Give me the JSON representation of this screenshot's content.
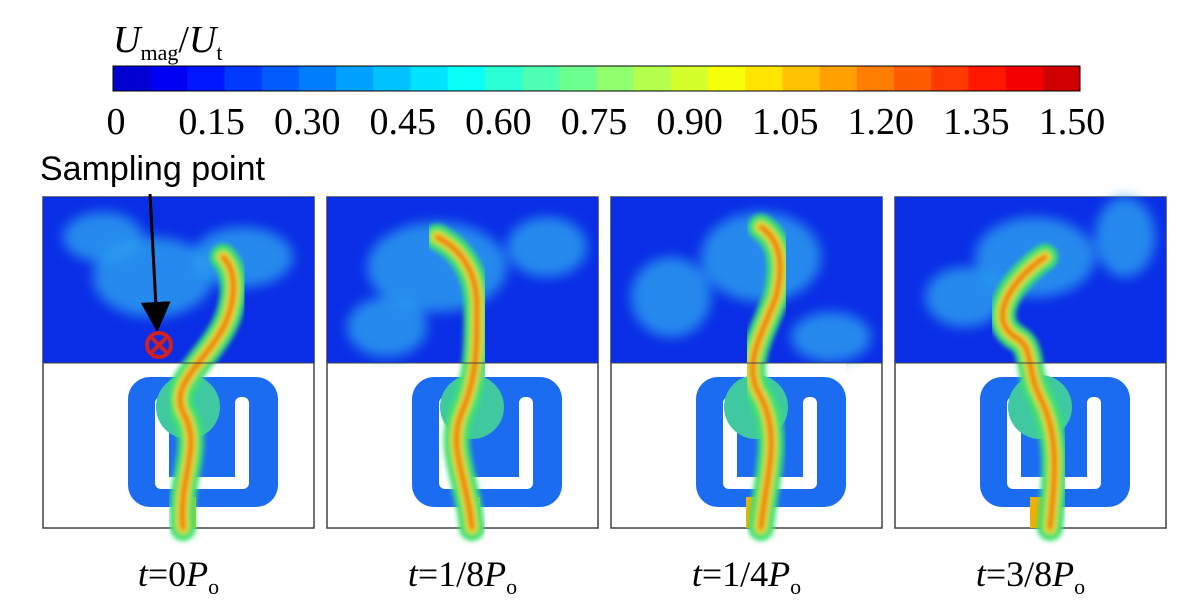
{
  "colorbar": {
    "title": {
      "symbol": "U",
      "symbol_sub": "mag",
      "slash": "/",
      "denominator": "U",
      "denominator_sub": "t"
    },
    "tick_labels": [
      "0",
      "0.15",
      "0.30",
      "0.45",
      "0.60",
      "0.75",
      "0.90",
      "1.05",
      "1.20",
      "1.35",
      "1.50"
    ]
  },
  "annotation": "Sampling point",
  "panels": [
    {
      "var": "t",
      "value": "=0",
      "unit": "P",
      "unit_sub": "o"
    },
    {
      "var": "t",
      "value": "=1/8",
      "unit": "P",
      "unit_sub": "o"
    },
    {
      "var": "t",
      "value": "=1/4",
      "unit": "P",
      "unit_sub": "o"
    },
    {
      "var": "t",
      "value": "=3/8",
      "unit": "P",
      "unit_sub": "o"
    }
  ]
}
